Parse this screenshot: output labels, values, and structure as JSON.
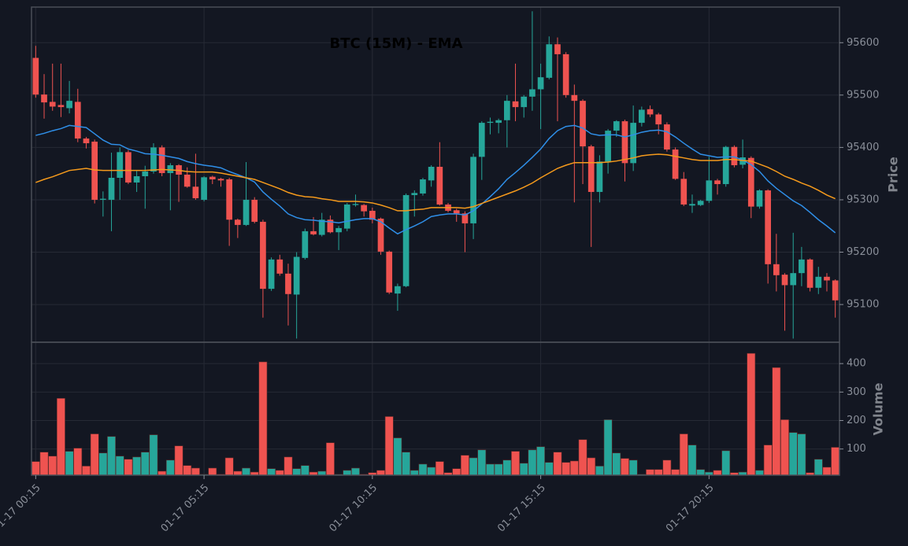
{
  "chart_data": {
    "type": "candlestick",
    "title": "BTC (15M) - EMA",
    "ylabel": "Price",
    "xlim": [
      -0.5,
      95.5
    ],
    "xticks": [
      {
        "value": 0,
        "label": "01-17 00:15"
      },
      {
        "value": 20,
        "label": "01-17 05:15"
      },
      {
        "value": 40,
        "label": "01-17 10:15"
      },
      {
        "value": 60,
        "label": "01-17 15:15"
      },
      {
        "value": 80,
        "label": "01-17 20:15"
      }
    ],
    "ylim": [
      95028,
      95668
    ],
    "yticks": [
      95100,
      95200,
      95300,
      95400,
      95500,
      95600
    ],
    "grid": true,
    "up_color": "#26a69a",
    "down_color": "#ef5350",
    "open": [
      95571,
      95501,
      95487,
      95481,
      95475,
      95487,
      95417,
      95411,
      95300,
      95300,
      95342,
      95391,
      95333,
      95345,
      95354,
      95400,
      95351,
      95366,
      95348,
      95325,
      95300,
      95344,
      95340,
      95339,
      95262,
      95252,
      95300,
      95258,
      95130,
      95186,
      95159,
      95119,
      95189,
      95240,
      95233,
      95262,
      95238,
      95245,
      95290,
      95290,
      95279,
      95264,
      95201,
      95121,
      95135,
      95309,
      95312,
      95337,
      95363,
      95291,
      95280,
      95274,
      95255,
      95382,
      95447,
      95447,
      95452,
      95488,
      95477,
      95497,
      95511,
      95533,
      95597,
      95578,
      95500,
      95489,
      95402,
      95315,
      95373,
      95432,
      95450,
      95370,
      95447,
      95473,
      95463,
      95444,
      95396,
      95340,
      95289,
      95290,
      95298,
      95337,
      95330,
      95401,
      95367,
      95380,
      95287,
      95318,
      95177,
      95157,
      95137,
      95160,
      95186,
      95132,
      95153,
      95146
    ],
    "high": [
      95594,
      95540,
      95560,
      95560,
      95527,
      95512,
      95420,
      95415,
      95316,
      95390,
      95400,
      95395,
      95355,
      95365,
      95408,
      95404,
      95370,
      95368,
      95362,
      95388,
      95345,
      95346,
      95342,
      95342,
      95264,
      95372,
      95305,
      95262,
      95190,
      95195,
      95178,
      95200,
      95245,
      95267,
      95275,
      95270,
      95250,
      95294,
      95310,
      95292,
      95285,
      95266,
      95203,
      95140,
      95312,
      95318,
      95342,
      95366,
      95410,
      95294,
      95283,
      95278,
      95388,
      95450,
      95457,
      95455,
      95500,
      95560,
      95500,
      95660,
      95560,
      95612,
      95610,
      95582,
      95520,
      95492,
      95405,
      95385,
      95435,
      95452,
      95453,
      95480,
      95478,
      95480,
      95466,
      95448,
      95400,
      95353,
      95310,
      95300,
      95382,
      95340,
      95403,
      95404,
      95415,
      95383,
      95320,
      95320,
      95235,
      95160,
      95237,
      95210,
      95188,
      95172,
      95160,
      95148
    ],
    "low": [
      95495,
      95455,
      95470,
      95458,
      95465,
      95410,
      95398,
      95293,
      95268,
      95240,
      95300,
      95330,
      95315,
      95283,
      95350,
      95345,
      95280,
      95296,
      95323,
      95300,
      95297,
      95330,
      95325,
      95212,
      95227,
      95250,
      95255,
      95075,
      95126,
      95155,
      95060,
      95035,
      95186,
      95232,
      95230,
      95236,
      95204,
      95240,
      95287,
      95268,
      95255,
      95195,
      95120,
      95088,
      95133,
      95268,
      95308,
      95325,
      95289,
      95276,
      95258,
      95200,
      95225,
      95338,
      95425,
      95427,
      95400,
      95450,
      95457,
      95470,
      95435,
      95530,
      95450,
      95495,
      95295,
      95330,
      95210,
      95295,
      95350,
      95420,
      95335,
      95355,
      95440,
      95458,
      95425,
      95392,
      95338,
      95288,
      95275,
      95288,
      95294,
      95310,
      95325,
      95362,
      95360,
      95265,
      95283,
      95140,
      95125,
      95050,
      95035,
      95135,
      95125,
      95120,
      95125,
      95075
    ],
    "close": [
      95501,
      95486,
      95478,
      95477,
      95489,
      95417,
      95408,
      95300,
      95302,
      95342,
      95391,
      95333,
      95345,
      95354,
      95400,
      95351,
      95366,
      95348,
      95325,
      95303,
      95343,
      95339,
      95337,
      95262,
      95252,
      95300,
      95258,
      95130,
      95186,
      95159,
      95120,
      95191,
      95240,
      95234,
      95262,
      95238,
      95246,
      95291,
      95292,
      95278,
      95262,
      95201,
      95123,
      95135,
      95309,
      95313,
      95339,
      95363,
      95291,
      95279,
      95274,
      95255,
      95382,
      95447,
      95449,
      95452,
      95489,
      95477,
      95497,
      95511,
      95534,
      95597,
      95578,
      95500,
      95489,
      95402,
      95315,
      95373,
      95432,
      95450,
      95370,
      95447,
      95472,
      95463,
      95444,
      95396,
      95340,
      95291,
      95292,
      95298,
      95337,
      95330,
      95401,
      95366,
      95381,
      95287,
      95318,
      95177,
      95156,
      95137,
      95160,
      95186,
      95132,
      95153,
      95146,
      95108
    ],
    "series": [
      {
        "color": "#2f8fe8",
        "values": [
          95423,
          95427,
          95432,
          95436,
          95442,
          95440,
          95438,
          95426,
          95414,
          95406,
          95405,
          95397,
          95393,
          95388,
          95387,
          95385,
          95382,
          95379,
          95373,
          95369,
          95366,
          95364,
          95361,
          95354,
          95348,
          95342,
          95334,
          95315,
          95301,
          95288,
          95273,
          95266,
          95262,
          95261,
          95259,
          95258,
          95256,
          95259,
          95262,
          95264,
          95264,
          95258,
          95246,
          95235,
          95243,
          95250,
          95258,
          95268,
          95271,
          95273,
          95273,
          95271,
          95279,
          95292,
          95306,
          95321,
          95339,
          95352,
          95366,
          95381,
          95397,
          95417,
          95432,
          95440,
          95442,
          95437,
          95426,
          95423,
          95424,
          95424,
          95420,
          95424,
          95429,
          95432,
          95433,
          95430,
          95420,
          95408,
          95397,
          95387,
          95384,
          95381,
          95382,
          95382,
          95376,
          95367,
          95354,
          95336,
          95322,
          95310,
          95298,
          95289,
          95276,
          95262,
          95250,
          95237
        ]
      },
      {
        "color": "#f59a1c",
        "values": [
          95333,
          95339,
          95344,
          95350,
          95356,
          95358,
          95360,
          95357,
          95356,
          95356,
          95356,
          95356,
          95356,
          95356,
          95357,
          95358,
          95357,
          95356,
          95354,
          95353,
          95353,
          95353,
          95351,
          95348,
          95345,
          95342,
          95339,
          95333,
          95327,
          95321,
          95314,
          95309,
          95306,
          95305,
          95302,
          95300,
          95297,
          95297,
          95297,
          95296,
          95294,
          95290,
          95285,
          95279,
          95279,
          95281,
          95282,
          95285,
          95285,
          95285,
          95285,
          95284,
          95287,
          95293,
          95299,
          95305,
          95311,
          95317,
          95324,
          95332,
          95342,
          95351,
          95360,
          95366,
          95371,
          95371,
          95371,
          95371,
          95372,
          95374,
          95377,
          95380,
          95384,
          95386,
          95387,
          95386,
          95383,
          95380,
          95377,
          95375,
          95375,
          95375,
          95377,
          95377,
          95375,
          95374,
          95368,
          95362,
          95354,
          95345,
          95339,
          95332,
          95326,
          95318,
          95309,
          95302
        ]
      }
    ],
    "volume": {
      "ylabel": "Volume",
      "ylim": [
        8,
        475
      ],
      "yticks": [
        100,
        200,
        300,
        400
      ],
      "values": [
        56,
        89,
        75,
        278,
        92,
        103,
        40,
        153,
        86,
        144,
        75,
        64,
        72,
        89,
        150,
        22,
        61,
        111,
        42,
        33,
        11,
        33,
        11,
        69,
        22,
        33,
        19,
        406,
        31,
        25,
        72,
        31,
        42,
        19,
        22,
        122,
        11,
        25,
        33,
        11,
        17,
        25,
        214,
        139,
        89,
        25,
        47,
        36,
        56,
        17,
        31,
        78,
        69,
        97,
        47,
        47,
        61,
        92,
        50,
        97,
        108,
        53,
        89,
        53,
        58,
        133,
        69,
        40,
        203,
        86,
        67,
        61,
        11,
        28,
        28,
        61,
        28,
        153,
        114,
        28,
        19,
        25,
        94,
        17,
        19,
        436,
        25,
        114,
        386,
        203,
        158,
        153,
        17,
        64,
        36,
        106
      ]
    }
  }
}
